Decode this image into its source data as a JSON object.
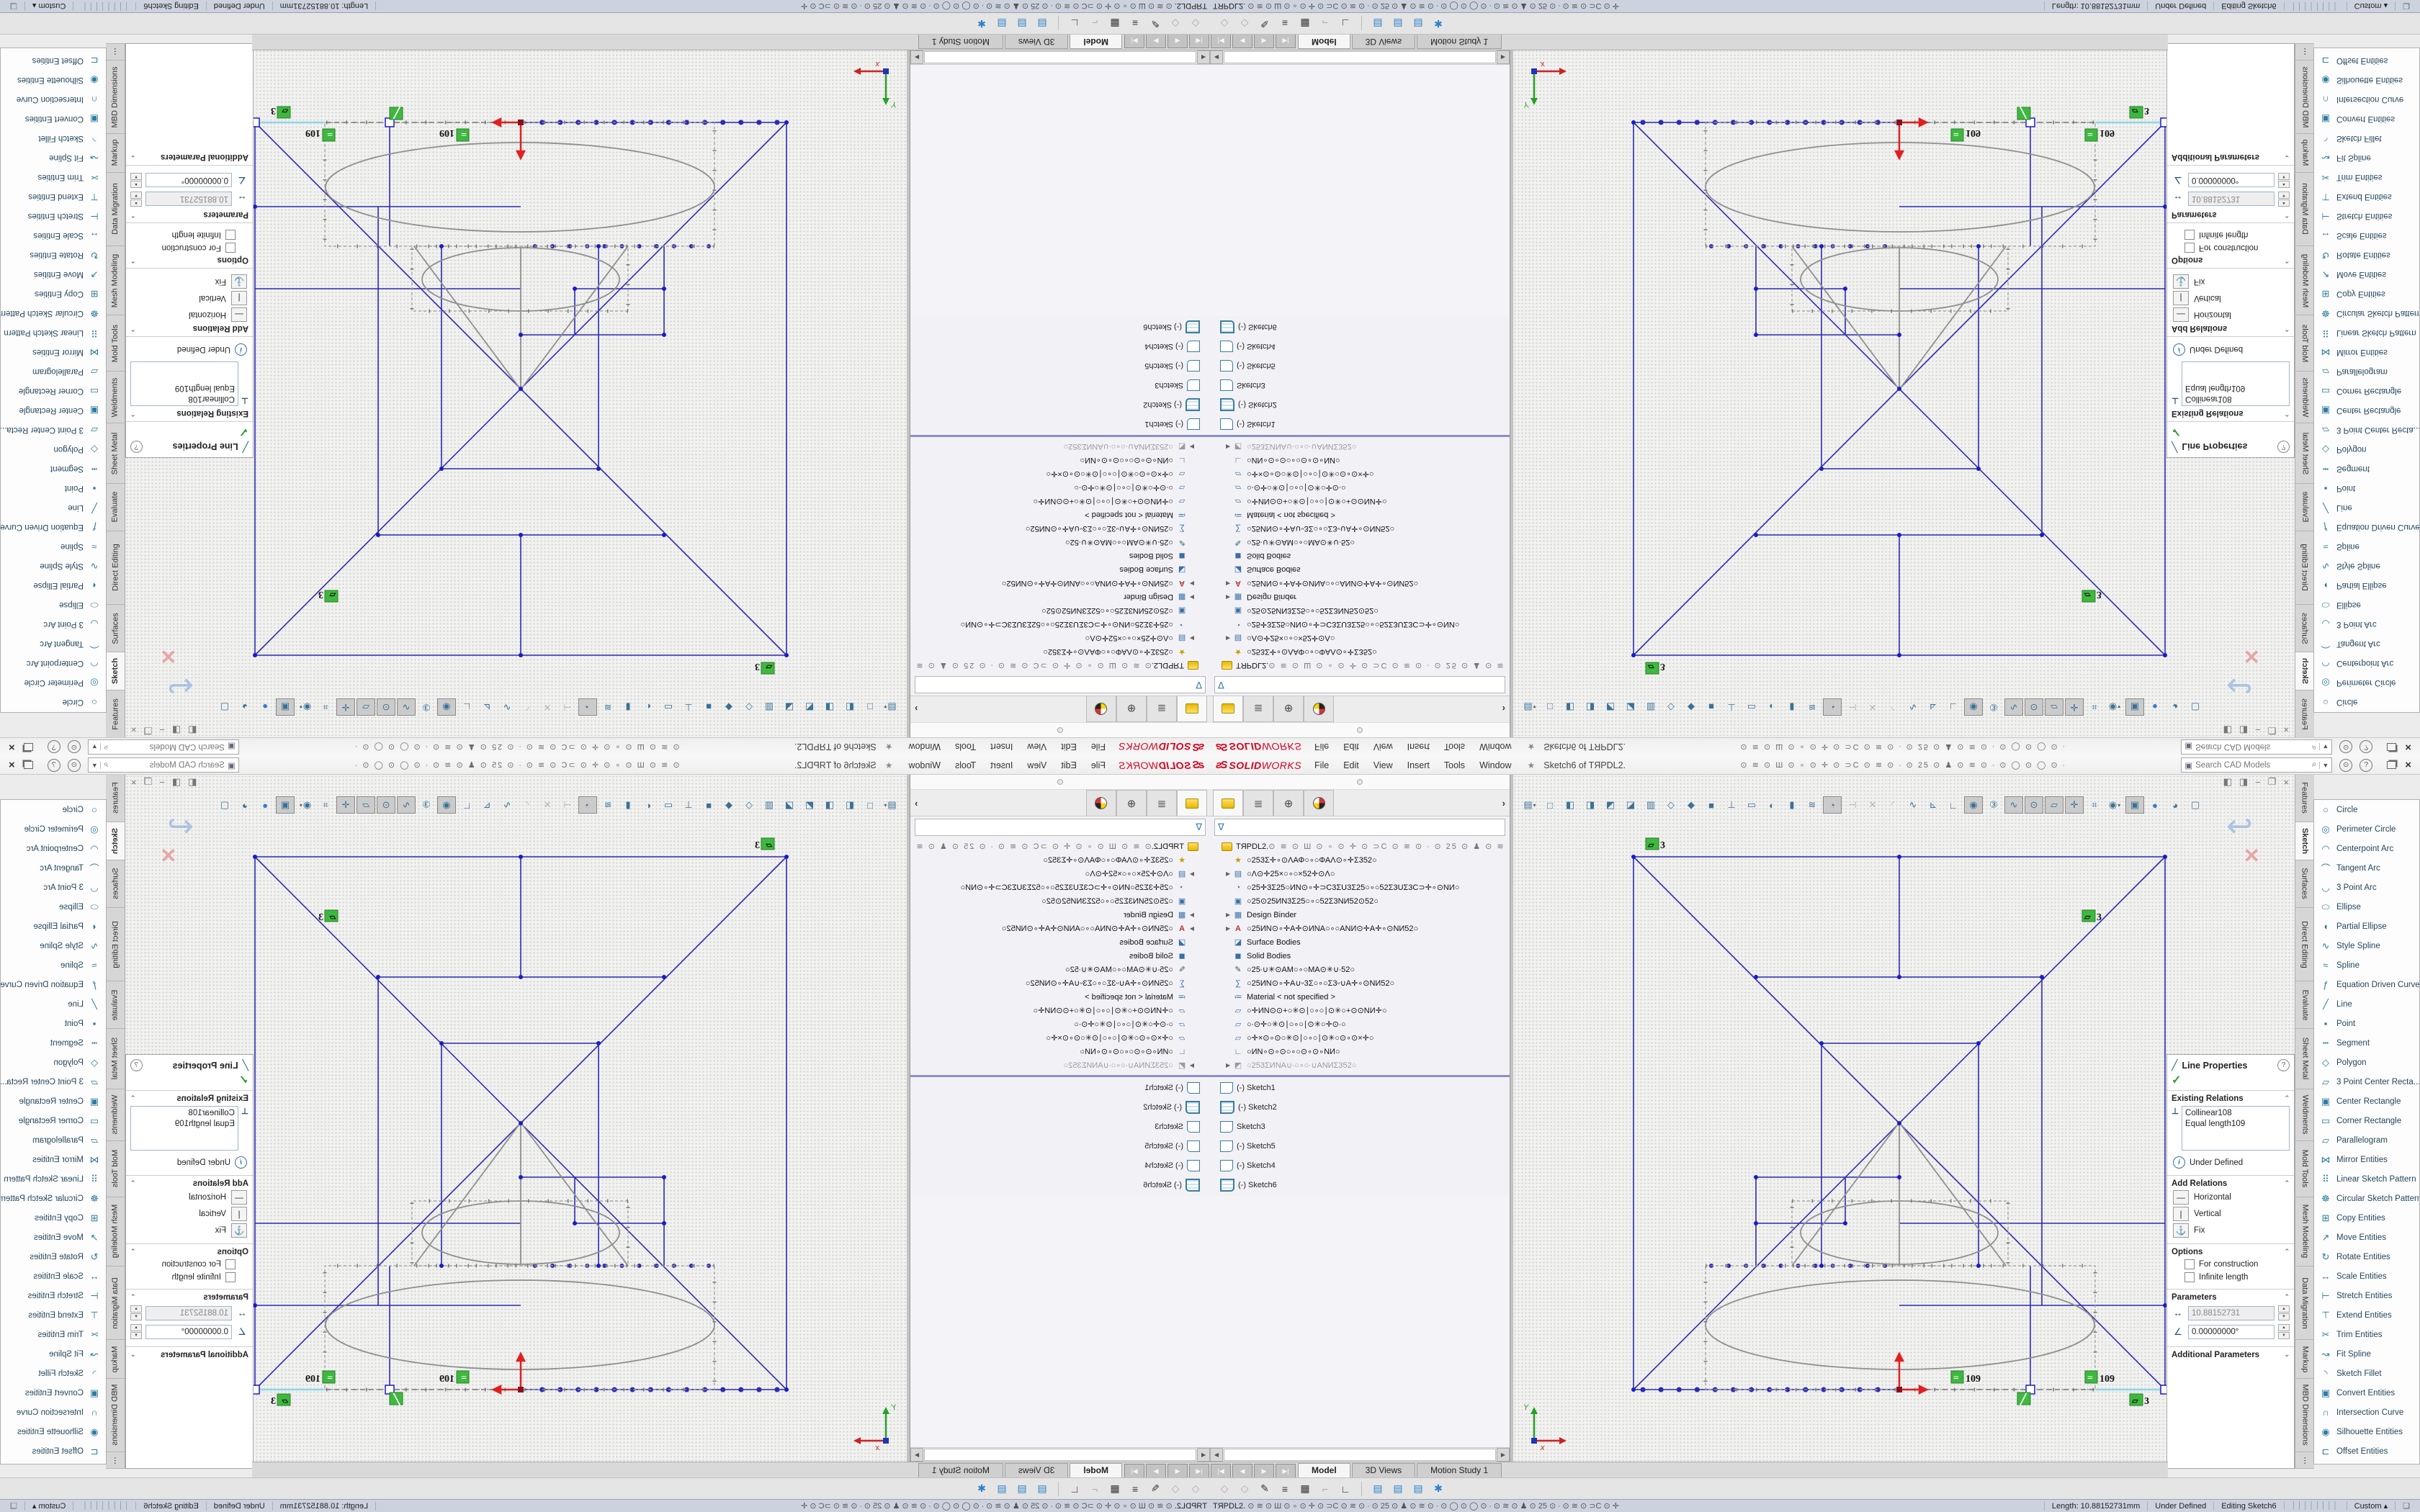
{
  "app": {
    "brand_solid": "SOLID",
    "brand_works": "WORKS",
    "logo_glyph": "ss",
    "menus": [
      "File",
      "Edit",
      "View",
      "Insert",
      "Tools",
      "Window"
    ],
    "pin": "★",
    "title": "Sketch6 of TЯPDL2.",
    "icon_soup": "⊙ ≋ ⊙ Ш ⊙ ∘ ⊙ ✛ ⊙ ⊃C ⊙ ≋ ⊙ ∙ ⊙ 25 ⊙ ♟ ⊙ ≋ ⊙ ∙ ⊙  ◯  ⊙  ◯  ⊙ ∙",
    "search": {
      "placeholder": "Search CAD Models",
      "cube_icon": "▣",
      "mag_icon": "⌕",
      "dd_icon": "▼"
    },
    "circle_buttons": [
      "⊙",
      "?"
    ],
    "window_close": "×"
  },
  "feature_manager": {
    "tabs": [
      "featuremanager-design-tree",
      "display-manager",
      "propertymanager",
      "configurationmanager"
    ],
    "tab_glyphs": {
      "display-manager": "≣",
      "propertymanager": "⊕"
    },
    "chevron": "›",
    "filter_glyph": "∇",
    "tree": [
      {
        "name": "part-root",
        "icon": "part",
        "label": "TЯPDL2.",
        "soup": "⊙ ≋ ⊙ Ш ⊙ ∘ ⊙ ✛ ⊙ ⊃C ⊙ ≋ ⊙ ∙ ⊙ 25 ⊙ ♟ ⊙ ≋",
        "root": true
      },
      {
        "name": "favorites-folder",
        "icon": "favorites",
        "glyph": "★",
        "label": "○253Σ✛∘⊙ΛΑΦ○∘○ΦΑΛ⊙∘✛Σ352○"
      },
      {
        "name": "history-folder",
        "icon": "history",
        "glyph": "▤",
        "arrow": true,
        "label": "○Λ⊙✛25×○∘○×52✛⊙Λ○"
      },
      {
        "name": "sensors",
        "icon": "sensors",
        "glyph": "◔",
        "label": "○25✛3Σ25○ИΝ⊙∘✛⊃C3ΣU3Σ25○∘○52Σ3UΣ3C⊃✛∘⊙ΝИ○"
      },
      {
        "name": "display-state",
        "icon": "display",
        "glyph": "▣",
        "label": "○25⊙25ИΝ3Σ25○∘○52Σ3ΝИ52⊙52○"
      },
      {
        "name": "design-binder",
        "icon": "design-binder",
        "glyph": "▦",
        "arrow": true,
        "label": "Design Binder"
      },
      {
        "name": "annotations",
        "icon": "annotations",
        "glyph": "A",
        "arrow": true,
        "label": "○25ИΝ⊙∘✛Α✛⊙ИΝΑ○∘○ΑΝИ⊙✛Α✛∘⊙ΝИ52○"
      },
      {
        "name": "surface-bodies",
        "icon": "surface-bodies",
        "glyph": "◪",
        "label": "Surface Bodies"
      },
      {
        "name": "solid-bodies",
        "icon": "solid-bodies",
        "glyph": "◼",
        "label": "Solid Bodies"
      },
      {
        "name": "markups",
        "icon": "markups",
        "glyph": "✎",
        "label": "○25∙∪✳⊙ΑΜ○∘○ΜΑ⊙✳∪∙52○"
      },
      {
        "name": "equations",
        "icon": "equations",
        "glyph": "∑",
        "label": "○25ИΝ⊙∘✛Α∪ᵕ3Σ○∘○Σ3ᵕ∪Α✛∘⊙ΝИ52○"
      },
      {
        "name": "material",
        "icon": "material",
        "glyph": "≔",
        "label": "Material  < not specified >"
      },
      {
        "name": "front-plane",
        "icon": "plane",
        "glyph": "▱",
        "label": "○✛ИΝ⊙⊙+○✳⊙∣○∘○∣⊙✳○+⊙⊙ΝИ✛○"
      },
      {
        "name": "top-plane",
        "icon": "plane",
        "glyph": "▱",
        "label": "○∙⊙✛○✳⊙∣○∘○∣⊙✳○✛⊙∙○"
      },
      {
        "name": "right-plane",
        "icon": "plane",
        "glyph": "▱",
        "label": "○✛×⊙∘⊙○✳⊙∣○∘○∣⊙✳○⊙∘⊙×✛○"
      },
      {
        "name": "origin",
        "icon": "origin",
        "glyph": "∟",
        "label": "○ИΝ∘⊙∘⊙○∘○⊙∘⊙∘ΝИ○"
      },
      {
        "name": "locked-folder",
        "icon": "locked-folder",
        "glyph": "◩",
        "arrow": true,
        "grayed": true,
        "label": "○253ΣИΝΑ∪∙○∘○∙∪ΑΝИΣ352○"
      }
    ],
    "sketch_list": [
      {
        "prefix": "(-)",
        "label": "Sketch1",
        "icon": "plain"
      },
      {
        "prefix": "(-)",
        "label": "Sketch2",
        "icon": "grid"
      },
      {
        "prefix": "",
        "label": "Sketch3",
        "icon": "plain"
      },
      {
        "prefix": "(-)",
        "label": "Sketch5",
        "icon": "plain"
      },
      {
        "prefix": "(-)",
        "label": "Sketch4",
        "icon": "plain"
      },
      {
        "prefix": "(-)",
        "label": "Sketch6",
        "icon": "grid"
      }
    ]
  },
  "hud_toolbar": [
    {
      "g": "▤",
      "cls": "dd",
      "n": "document-views"
    },
    {
      "g": "□",
      "n": "front-view"
    },
    {
      "g": "◧",
      "n": "left-view"
    },
    {
      "g": "◨",
      "n": "right-view"
    },
    {
      "g": "◩",
      "n": "top-view"
    },
    {
      "g": "◪",
      "n": "bottom-view"
    },
    {
      "g": "▥",
      "n": "back-view"
    },
    {
      "g": "◇",
      "n": "isometric-view"
    },
    {
      "g": "◆",
      "n": "trimetric-view"
    },
    {
      "g": "■",
      "n": "shaded-view"
    },
    {
      "g": "⊥",
      "n": "normal-to"
    },
    {
      "g": "▭",
      "n": "viewport"
    },
    {
      "g": "◐",
      "n": "display-style"
    },
    {
      "g": "▮",
      "n": "section-view"
    },
    {
      "g": "≋",
      "n": "zebra-stripes"
    },
    {
      "g": "◔",
      "cls": "pressed",
      "n": "realview"
    },
    {
      "g": "⊣",
      "cls": "dis",
      "n": "disabled-tool-1"
    },
    {
      "g": "✕",
      "cls": "dis",
      "n": "disabled-tool-2"
    },
    {
      "g": "◜",
      "cls": "dis",
      "n": "disabled-tool-3"
    },
    {
      "g": "∿",
      "n": "spline-tool"
    },
    {
      "g": "⊾",
      "n": "measure"
    },
    {
      "g": "∟",
      "n": "plane-visibility"
    },
    {
      "g": "◉",
      "cls": "pressed",
      "n": "view-sketches"
    },
    {
      "g": "③",
      "n": "view-3d-sketches"
    },
    {
      "g": "∿",
      "cls": "pressed",
      "n": "view-splines"
    },
    {
      "g": "⊙",
      "cls": "pressed",
      "n": "view-points"
    },
    {
      "g": "▱",
      "cls": "pressed",
      "n": "view-planes"
    },
    {
      "g": "✛",
      "cls": "pressed",
      "n": "view-origins"
    },
    {
      "g": "⌗",
      "n": "view-grid"
    },
    {
      "g": "◉",
      "cls": "dd",
      "n": "hide-show-items"
    },
    {
      "g": "▣",
      "cls": "pressed",
      "n": "rgb-cube"
    },
    {
      "g": "●",
      "cls": "blue",
      "n": "appearance-sphere"
    },
    {
      "g": "◕",
      "n": "scene-sphere"
    },
    {
      "g": "▢",
      "n": "camera-cube"
    }
  ],
  "gfx_window_controls": [
    "◧",
    "◨",
    "−",
    "❐",
    "×"
  ],
  "confirmation_corner": {
    "exit_glyph": "↩",
    "cancel_glyph": "✕"
  },
  "sketch_badges": {
    "equal": "=",
    "equal_num": "109",
    "parallel": "▱",
    "parallel_num": "3",
    "line": "╱"
  },
  "command_tabs": {
    "items": [
      "Features",
      "Sketch",
      "Surfaces",
      "Direct Editing",
      "Evaluate",
      "Sheet Metal",
      "Weldments",
      "Mold Tools",
      "Mesh Modeling",
      "Data Migration",
      "Markup",
      "MBD Dimensions",
      "⋯"
    ],
    "active": "Sketch"
  },
  "sketch_flyout": [
    {
      "label": "Circle",
      "g": "○"
    },
    {
      "label": "Perimeter Circle",
      "g": "◎"
    },
    {
      "label": "Centerpoint Arc",
      "g": "◠"
    },
    {
      "label": "Tangent Arc",
      "g": "⌒"
    },
    {
      "label": "3 Point Arc",
      "g": "◡"
    },
    {
      "label": "Ellipse",
      "g": "⬭"
    },
    {
      "label": "Partial Ellipse",
      "g": "◖"
    },
    {
      "label": "Style Spline",
      "g": "∿"
    },
    {
      "label": "Spline",
      "g": "≈"
    },
    {
      "label": "Equation Driven Curve",
      "g": "ƒ"
    },
    {
      "label": "Line",
      "g": "╱"
    },
    {
      "label": "Point",
      "g": "▪"
    },
    {
      "label": "Segment",
      "g": "┅"
    },
    {
      "label": "Polygon",
      "g": "◇"
    },
    {
      "label": "3 Point Center Recta...",
      "g": "▱"
    },
    {
      "label": "Center Rectangle",
      "g": "▣"
    },
    {
      "label": "Corner Rectangle",
      "g": "▭"
    },
    {
      "label": "Parallelogram",
      "g": "▱"
    },
    {
      "label": "Mirror Entities",
      "g": "⋈"
    },
    {
      "label": "Linear Sketch Pattern",
      "g": "⠿"
    },
    {
      "label": "Circular Sketch Pattern",
      "g": "☸"
    },
    {
      "label": "Copy Entities",
      "g": "⊞"
    },
    {
      "label": "Move Entities",
      "g": "↗"
    },
    {
      "label": "Rotate Entities",
      "g": "↻"
    },
    {
      "label": "Scale Entities",
      "g": "↔"
    },
    {
      "label": "Stretch Entities",
      "g": "⊢"
    },
    {
      "label": "Extend Entities",
      "g": "⊤"
    },
    {
      "label": "Trim Entities",
      "g": "✂"
    },
    {
      "label": "Fit Spline",
      "g": "↝"
    },
    {
      "label": "Sketch Fillet",
      "g": "◝"
    },
    {
      "label": "Convert Entities",
      "g": "▣"
    },
    {
      "label": "Intersection Curve",
      "g": "∩"
    },
    {
      "label": "Silhouette Entities",
      "g": "◉"
    },
    {
      "label": "Offset Entities",
      "g": "⊏"
    }
  ],
  "property_panel": {
    "title": "Line Properties",
    "help": "?",
    "ok": "✓",
    "existing_relations": {
      "label": "Existing Relations",
      "caret": "⌃",
      "perp_icon": "⊥",
      "items": [
        "Collinear108",
        "Equal length109"
      ]
    },
    "state": {
      "info_icon": "i",
      "label": "Under Defined"
    },
    "add_relations": {
      "label": "Add Relations",
      "caret": "⌃",
      "options": [
        {
          "icon": "—",
          "label": "Horizontal"
        },
        {
          "icon": "|",
          "label": "Vertical"
        },
        {
          "icon": "⚓",
          "label": "Fix"
        }
      ]
    },
    "options": {
      "label": "Options",
      "caret": "⌃",
      "checks": [
        "For construction",
        "Infinite length"
      ]
    },
    "parameters": {
      "label": "Parameters",
      "caret": "⌃",
      "length_icon": "↔",
      "length_value": "10.88152731",
      "angle_icon": "∠",
      "angle_value": "0.00000000°"
    },
    "additional": {
      "label": "Additional Parameters",
      "caret": "⌄"
    }
  },
  "model_tabs": {
    "nav": [
      "|◀",
      "◀",
      "▶",
      "▶|"
    ],
    "tabs": [
      "Model",
      "3D Views",
      "Motion Study 1"
    ],
    "active": "Model"
  },
  "toolbar2": [
    {
      "g": "◇",
      "cls": "dis"
    },
    {
      "g": "◇",
      "cls": "dis"
    },
    {
      "g": "✎"
    },
    {
      "g": "≡"
    },
    {
      "g": "▦"
    },
    {
      "g": "⌐",
      "cls": "dis"
    },
    {
      "g": "∟"
    },
    {
      "g": "sep"
    },
    {
      "g": "▤",
      "cls": "blue"
    },
    {
      "g": "▤",
      "cls": "blue"
    },
    {
      "g": "▤",
      "cls": "blue"
    },
    {
      "g": "✱",
      "cls": "blue"
    }
  ],
  "status_bar": {
    "doc": "TЯPDL2.",
    "soup": "  ⊙ ≋ ⊙ Ш ⊙ ∘ ⊙ ✛ ⊙ ⊃C ⊙ ≋ ⊙ ∙ ⊙ 25 ⊙ ♟ ⊙ ≋ ⊙ ∙ ⊙   ◯   ⊙   ◯   ⊙ ∙ ⊙ ≋ ⊙ ♟ ⊙ 25 ⊙ ∙ ⊙ ≋ ⊙ ⊃C ⊙ ✛",
    "length": "Length: 10.88152731mm",
    "state": "Under Defined",
    "editing": "Editing Sketch6",
    "bars": "││││││││",
    "custom": "Custom",
    "custom_caret": "▴",
    "tag_icon": "❏"
  },
  "colors": {
    "accent_red": "#d9001d",
    "sketch_blue": "#2b2bb4",
    "relation_green": "#3fb83f",
    "construction_gray": "#8f8f8f",
    "status_bg": "#ccd3de"
  }
}
